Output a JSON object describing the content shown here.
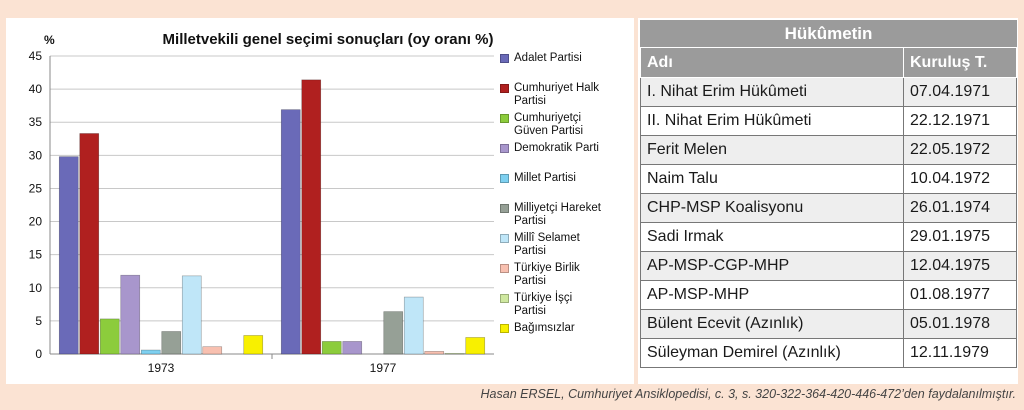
{
  "chart_data": {
    "type": "bar",
    "title": "Milletvekili genel seçimi sonuçları (oy oranı %)",
    "ylabel": "%",
    "xlabel": "",
    "categories": [
      "1973",
      "1977"
    ],
    "ylim": [
      0,
      45
    ],
    "yticks": [
      0,
      5,
      10,
      15,
      20,
      25,
      30,
      35,
      40,
      45
    ],
    "grid": true,
    "legend_position": "right",
    "series": [
      {
        "name": "Adalet Partisi",
        "color": "#6a6ab8",
        "values": [
          29.8,
          36.9
        ]
      },
      {
        "name": "Cumhuriyet Halk Partisi",
        "color": "#b0201f",
        "values": [
          33.3,
          41.4
        ]
      },
      {
        "name": "Cumhuriyetçi Güven Partisi",
        "color": "#8ccc3c",
        "values": [
          5.3,
          1.9
        ]
      },
      {
        "name": "Demokratik Parti",
        "color": "#a896cc",
        "values": [
          11.9,
          1.9
        ]
      },
      {
        "name": "Millet Partisi",
        "color": "#7ed0f0",
        "values": [
          0.6,
          null
        ]
      },
      {
        "name": "Milliyetçi Hareket Partisi",
        "color": "#96a096",
        "values": [
          3.4,
          6.4
        ]
      },
      {
        "name": "Millî Selamet Partisi",
        "color": "#bfe6f8",
        "values": [
          11.8,
          8.6
        ]
      },
      {
        "name": "Türkiye Birlik Partisi",
        "color": "#f8c0b0",
        "values": [
          1.1,
          0.4
        ]
      },
      {
        "name": "Türkiye İşçi Partisi",
        "color": "#cfe8a0",
        "values": [
          null,
          0.1
        ]
      },
      {
        "name": "Bağımsızlar",
        "color": "#f8f000",
        "values": [
          2.8,
          2.5
        ]
      }
    ]
  },
  "legend_lines": [
    [
      "Adalet Partisi"
    ],
    [
      "Cumhuriyet Halk",
      "Partisi"
    ],
    [
      "Cumhuriyetçi",
      "Güven Partisi"
    ],
    [
      "Demokratik Parti"
    ],
    [
      "Millet Partisi"
    ],
    [
      "Milliyetçi Hareket",
      "Partisi"
    ],
    [
      "Millî Selamet",
      "Partisi"
    ],
    [
      "Türkiye Birlik",
      "Partisi"
    ],
    [
      "Türkiye İşçi",
      "Partisi"
    ],
    [
      "Bağımsızlar"
    ]
  ],
  "table": {
    "title": "Hükûmetin",
    "headers": {
      "name": "Adı",
      "date": "Kuruluş T."
    },
    "rows": [
      {
        "name": "I. Nihat Erim Hükûmeti",
        "date": "07.04.1971"
      },
      {
        "name": "II. Nihat Erim Hükûmeti",
        "date": "22.12.1971"
      },
      {
        "name": "Ferit Melen",
        "date": "22.05.1972"
      },
      {
        "name": "Naim Talu",
        "date": "10.04.1972"
      },
      {
        "name": "CHP-MSP Koalisyonu",
        "date": "26.01.1974"
      },
      {
        "name": "Sadi Irmak",
        "date": "29.01.1975"
      },
      {
        "name": "AP-MSP-CGP-MHP",
        "date": "12.04.1975"
      },
      {
        "name": "AP-MSP-MHP",
        "date": "01.08.1977"
      },
      {
        "name": "Bülent Ecevit (Azınlık)",
        "date": "05.01.1978"
      },
      {
        "name": "Süleyman Demirel (Azınlık)",
        "date": "12.11.1979"
      }
    ]
  },
  "source": "Hasan ERSEL, Cumhuriyet Ansiklopedisi, c. 3, s. 320-322-364-420-446-472’den faydalanılmıştır."
}
